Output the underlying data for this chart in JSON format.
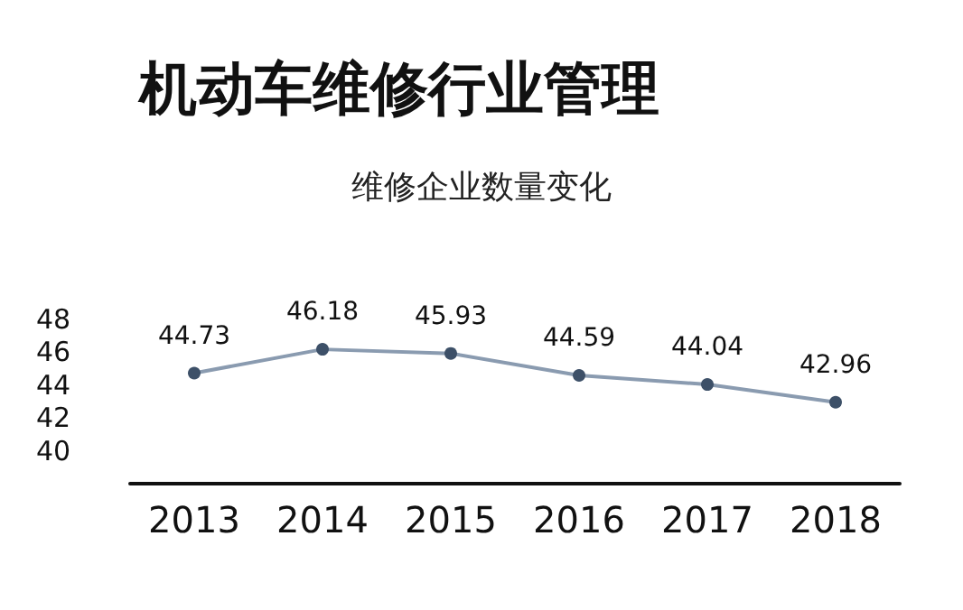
{
  "chart_data": {
    "type": "line",
    "title": "机动车维修行业管理",
    "subtitle": "维修企业数量变化",
    "categories": [
      "2013",
      "2014",
      "2015",
      "2016",
      "2017",
      "2018"
    ],
    "series": [
      {
        "color": "#8a9bb0",
        "values": [
          44.73,
          46.18,
          45.93,
          44.59,
          44.04,
          42.96
        ]
      }
    ],
    "ylim": [
      38,
      48
    ],
    "yticks": [
      40,
      42,
      44,
      46,
      48
    ],
    "grid": false,
    "marker": "circle",
    "line_style": "solid",
    "data_labels": true
  }
}
